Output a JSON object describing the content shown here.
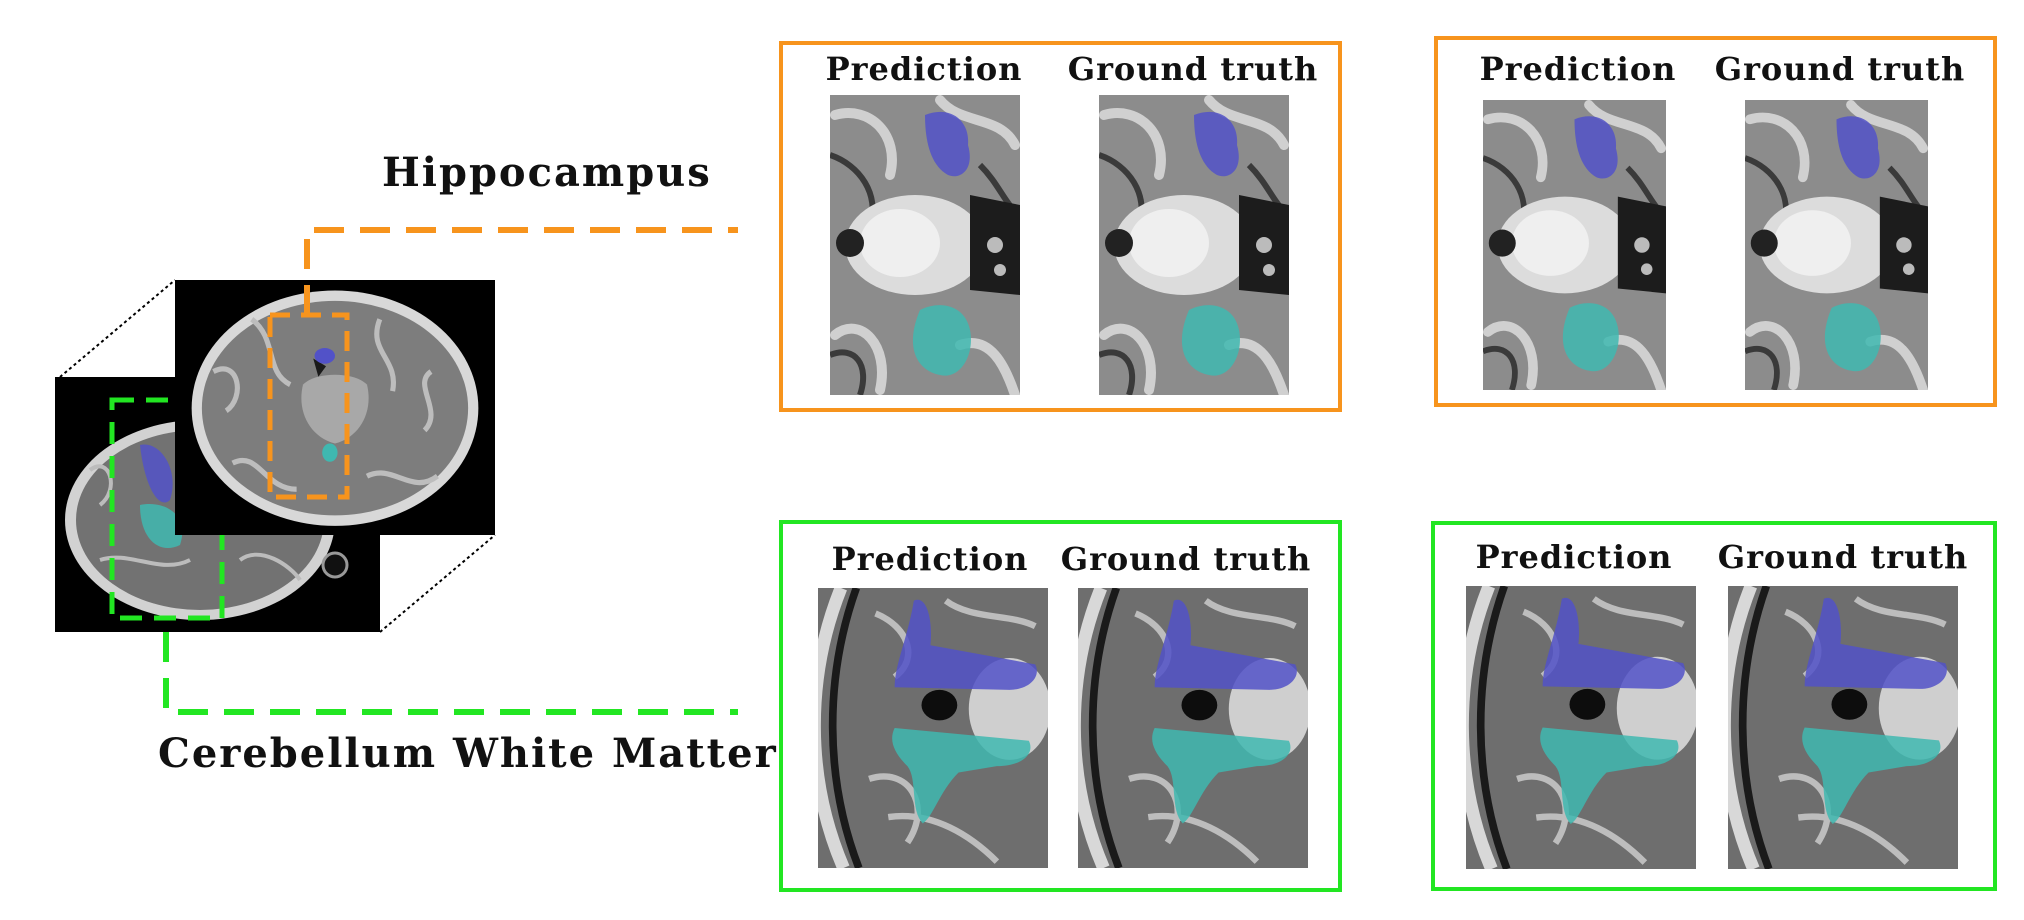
{
  "figure": {
    "structure_labels": {
      "hippocampus": "Hippocampus",
      "cerebellum": "Cerebellum White Matter"
    },
    "panel_titles": {
      "prediction": "Prediction",
      "ground_truth": "Ground truth"
    },
    "colors": {
      "hippocampus_frame": "#F7941D",
      "cerebellum_frame": "#22E622",
      "label_a": "#5252C8",
      "label_b": "#3FB8B0",
      "mri_background": "#000000"
    },
    "panels": [
      {
        "group": "hippocampus",
        "example": 1
      },
      {
        "group": "hippocampus",
        "example": 2
      },
      {
        "group": "cerebellum",
        "example": 1
      },
      {
        "group": "cerebellum",
        "example": 2
      }
    ]
  }
}
